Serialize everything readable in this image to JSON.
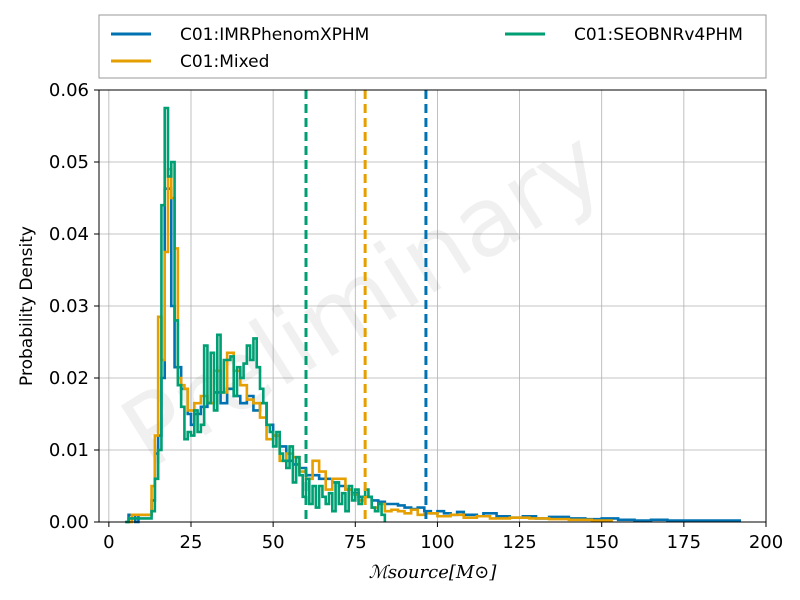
{
  "chart_data": {
    "type": "step-histogram",
    "xlabel": "ℳsource[M⊙]",
    "ylabel": "Probability Density",
    "xlim": [
      -3,
      200
    ],
    "ylim": [
      0,
      0.06
    ],
    "xticks": [
      0,
      25,
      50,
      75,
      100,
      125,
      150,
      175,
      200
    ],
    "yticks": [
      0.0,
      0.01,
      0.02,
      0.03,
      0.04,
      0.05,
      0.06
    ],
    "xtick_labels": [
      "0",
      "25",
      "50",
      "75",
      "100",
      "125",
      "150",
      "175",
      "200"
    ],
    "ytick_labels": [
      "0.00",
      "0.01",
      "0.02",
      "0.03",
      "0.04",
      "0.05",
      "0.06"
    ],
    "grid": true,
    "watermark": "Preliminary",
    "legend": {
      "position": "above-plot",
      "columns": 2
    },
    "series": [
      {
        "name": "C01:IMRPhenomXPHM",
        "color": "#0072b2",
        "median_line_x": 96.5,
        "steps": [
          [
            5,
            0.0
          ],
          [
            6,
            0.001
          ],
          [
            8,
            0.0
          ],
          [
            9,
            0.001
          ],
          [
            11,
            0.001
          ],
          [
            13,
            0.003
          ],
          [
            14,
            0.0095
          ],
          [
            15,
            0.012
          ],
          [
            16,
            0.02
          ],
          [
            17,
            0.0463
          ],
          [
            18,
            0.0463
          ],
          [
            19,
            0.03
          ],
          [
            20,
            0.0215
          ],
          [
            21,
            0.0215
          ],
          [
            22,
            0.0185
          ],
          [
            24,
            0.015
          ],
          [
            25,
            0.0135
          ],
          [
            26,
            0.015
          ],
          [
            28,
            0.016
          ],
          [
            30,
            0.0165
          ],
          [
            32,
            0.018
          ],
          [
            34,
            0.0165
          ],
          [
            36,
            0.0185
          ],
          [
            38,
            0.0175
          ],
          [
            40,
            0.0165
          ],
          [
            42,
            0.0175
          ],
          [
            44,
            0.0155
          ],
          [
            46,
            0.0165
          ],
          [
            48,
            0.0135
          ],
          [
            50,
            0.012
          ],
          [
            52,
            0.0105
          ],
          [
            54,
            0.0085
          ],
          [
            56,
            0.008
          ],
          [
            58,
            0.0075
          ],
          [
            60,
            0.0065
          ],
          [
            62,
            0.0065
          ],
          [
            64,
            0.006
          ],
          [
            66,
            0.006
          ],
          [
            68,
            0.0055
          ],
          [
            70,
            0.005
          ],
          [
            72,
            0.0045
          ],
          [
            74,
            0.004
          ],
          [
            76,
            0.0035
          ],
          [
            78,
            0.0035
          ],
          [
            80,
            0.003
          ],
          [
            82,
            0.0028
          ],
          [
            84,
            0.0025
          ],
          [
            86,
            0.0025
          ],
          [
            88,
            0.0023
          ],
          [
            90,
            0.002
          ],
          [
            92,
            0.0018
          ],
          [
            94,
            0.002
          ],
          [
            96,
            0.0015
          ],
          [
            98,
            0.0012
          ],
          [
            100,
            0.0015
          ],
          [
            102,
            0.0012
          ],
          [
            104,
            0.001
          ],
          [
            106,
            0.0014
          ],
          [
            108,
            0.001
          ],
          [
            112,
            0.0008
          ],
          [
            114,
            0.0012
          ],
          [
            118,
            0.0008
          ],
          [
            122,
            0.0006
          ],
          [
            126,
            0.0008
          ],
          [
            130,
            0.0005
          ],
          [
            134,
            0.0007
          ],
          [
            140,
            0.0005
          ],
          [
            145,
            0.0004
          ],
          [
            150,
            0.0005
          ],
          [
            155,
            0.0003
          ],
          [
            160,
            0.0002
          ],
          [
            165,
            0.0003
          ],
          [
            170,
            0.0002
          ],
          [
            180,
            0.0002
          ],
          [
            192,
            0.0
          ]
        ]
      },
      {
        "name": "C01:Mixed",
        "color": "#e69f00",
        "median_line_x": 78,
        "steps": [
          [
            6,
            0.0
          ],
          [
            7,
            0.001
          ],
          [
            12,
            0.001
          ],
          [
            13,
            0.005
          ],
          [
            14,
            0.012
          ],
          [
            15,
            0.0285
          ],
          [
            16,
            0.0225
          ],
          [
            17,
            0.0375
          ],
          [
            18,
            0.049
          ],
          [
            19,
            0.045
          ],
          [
            20,
            0.038
          ],
          [
            21,
            0.02
          ],
          [
            22,
            0.019
          ],
          [
            23,
            0.0185
          ],
          [
            24,
            0.0155
          ],
          [
            26,
            0.0165
          ],
          [
            28,
            0.0175
          ],
          [
            30,
            0.0165
          ],
          [
            32,
            0.021
          ],
          [
            34,
            0.018
          ],
          [
            36,
            0.0235
          ],
          [
            38,
            0.021
          ],
          [
            40,
            0.019
          ],
          [
            42,
            0.017
          ],
          [
            44,
            0.0165
          ],
          [
            46,
            0.0145
          ],
          [
            48,
            0.0115
          ],
          [
            50,
            0.012
          ],
          [
            52,
            0.0085
          ],
          [
            54,
            0.0095
          ],
          [
            56,
            0.009
          ],
          [
            58,
            0.007
          ],
          [
            60,
            0.006
          ],
          [
            62,
            0.0085
          ],
          [
            64,
            0.007
          ],
          [
            66,
            0.0045
          ],
          [
            68,
            0.006
          ],
          [
            70,
            0.006
          ],
          [
            72,
            0.0045
          ],
          [
            74,
            0.0038
          ],
          [
            76,
            0.003
          ],
          [
            78,
            0.0035
          ],
          [
            80,
            0.002
          ],
          [
            82,
            0.0025
          ],
          [
            84,
            0.0015
          ],
          [
            86,
            0.0017
          ],
          [
            88,
            0.0015
          ],
          [
            90,
            0.0012
          ],
          [
            92,
            0.0017
          ],
          [
            94,
            0.001
          ],
          [
            96,
            0.0012
          ],
          [
            100,
            0.0008
          ],
          [
            104,
            0.001
          ],
          [
            108,
            0.0006
          ],
          [
            112,
            0.0008
          ],
          [
            116,
            0.0005
          ],
          [
            122,
            0.0006
          ],
          [
            128,
            0.0005
          ],
          [
            134,
            0.0004
          ],
          [
            140,
            0.0003
          ],
          [
            147,
            0.0002
          ],
          [
            153,
            0.0
          ]
        ]
      },
      {
        "name": "C01:SEOBNRv4PHM",
        "color": "#009e73",
        "median_line_x": 60,
        "steps": [
          [
            5,
            0.0
          ],
          [
            6,
            0.0005
          ],
          [
            8,
            0.0005
          ],
          [
            12,
            0.0005
          ],
          [
            13,
            0.0015
          ],
          [
            14,
            0.006
          ],
          [
            15,
            0.01
          ],
          [
            16,
            0.044
          ],
          [
            17,
            0.0575
          ],
          [
            18,
            0.048
          ],
          [
            19,
            0.05
          ],
          [
            20,
            0.028
          ],
          [
            21,
            0.019
          ],
          [
            22,
            0.016
          ],
          [
            23,
            0.0115
          ],
          [
            24,
            0.0125
          ],
          [
            25,
            0.012
          ],
          [
            26,
            0.0155
          ],
          [
            27,
            0.0125
          ],
          [
            28,
            0.0135
          ],
          [
            29,
            0.0245
          ],
          [
            30,
            0.0165
          ],
          [
            31,
            0.0235
          ],
          [
            32,
            0.0155
          ],
          [
            33,
            0.026
          ],
          [
            34,
            0.018
          ],
          [
            35,
            0.0225
          ],
          [
            36,
            0.0225
          ],
          [
            37,
            0.023
          ],
          [
            38,
            0.0175
          ],
          [
            39,
            0.0215
          ],
          [
            40,
            0.02
          ],
          [
            41,
            0.022
          ],
          [
            42,
            0.0245
          ],
          [
            43,
            0.0225
          ],
          [
            44,
            0.0255
          ],
          [
            45,
            0.0215
          ],
          [
            46,
            0.0185
          ],
          [
            47,
            0.0165
          ],
          [
            48,
            0.0135
          ],
          [
            49,
            0.0125
          ],
          [
            50,
            0.0105
          ],
          [
            51,
            0.0125
          ],
          [
            52,
            0.0095
          ],
          [
            53,
            0.0085
          ],
          [
            54,
            0.0075
          ],
          [
            55,
            0.0105
          ],
          [
            56,
            0.0055
          ],
          [
            57,
            0.009
          ],
          [
            58,
            0.0065
          ],
          [
            59,
            0.0035
          ],
          [
            60,
            0.006
          ],
          [
            61,
            0.0025
          ],
          [
            62,
            0.005
          ],
          [
            63,
            0.002
          ],
          [
            64,
            0.005
          ],
          [
            65,
            0.0035
          ],
          [
            66,
            0.0025
          ],
          [
            67,
            0.004
          ],
          [
            68,
            0.0015
          ],
          [
            69,
            0.0055
          ],
          [
            70,
            0.0025
          ],
          [
            71,
            0.004
          ],
          [
            72,
            0.0015
          ],
          [
            73,
            0.005
          ],
          [
            74,
            0.003
          ],
          [
            75,
            0.0045
          ],
          [
            76,
            0.0025
          ],
          [
            77,
            0.0035
          ],
          [
            78,
            0.0045
          ],
          [
            79,
            0.0035
          ],
          [
            80,
            0.002
          ],
          [
            81,
            0.0015
          ],
          [
            82,
            0.0025
          ],
          [
            83,
            0.001
          ],
          [
            84,
            0.0
          ]
        ]
      }
    ]
  }
}
